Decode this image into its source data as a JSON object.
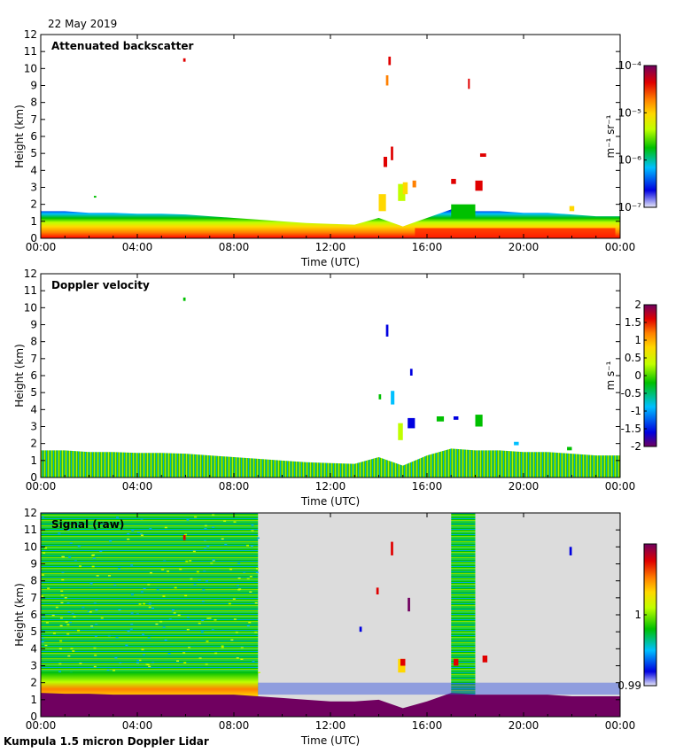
{
  "date": "22 May 2019",
  "footer": "Kumpula 1.5 micron Doppler Lidar",
  "chart_data": [
    {
      "type": "heatmap",
      "title": "Attenuated backscatter",
      "xlabel": "Time (UTC)",
      "ylabel": "Height (km)",
      "xticks": [
        "00:00",
        "04:00",
        "08:00",
        "12:00",
        "16:00",
        "20:00",
        "00:00"
      ],
      "yticks": [
        "0",
        "1",
        "2",
        "3",
        "4",
        "5",
        "6",
        "7",
        "8",
        "9",
        "10",
        "11",
        "12"
      ],
      "xlim": [
        0,
        24
      ],
      "ylim": [
        0,
        12
      ],
      "colorbar": {
        "label": "m⁻¹ sr⁻¹",
        "ticks": [
          "10⁻⁴",
          "10⁻⁵",
          "10⁻⁶",
          "10⁻⁷"
        ],
        "range": [
          1e-07,
          0.0001
        ],
        "colors": [
          "#e8e8f8",
          "#0000e0",
          "#00c0ff",
          "#00c000",
          "#c0ff00",
          "#ffd800",
          "#ff8000",
          "#e00000",
          "#700060"
        ]
      }
    },
    {
      "type": "heatmap",
      "title": "Doppler velocity",
      "xlabel": "Time (UTC)",
      "ylabel": "Height (km)",
      "xticks": [
        "00:00",
        "04:00",
        "08:00",
        "12:00",
        "16:00",
        "20:00",
        "00:00"
      ],
      "yticks": [
        "0",
        "1",
        "2",
        "3",
        "4",
        "5",
        "6",
        "7",
        "8",
        "9",
        "10",
        "11",
        "12"
      ],
      "xlim": [
        0,
        24
      ],
      "ylim": [
        0,
        12
      ],
      "colorbar": {
        "label": "m s⁻¹",
        "ticks": [
          "2",
          "1.5",
          "1",
          "0.5",
          "0",
          "-0.5",
          "-1",
          "-1.5",
          "-2"
        ],
        "range": [
          -2,
          2
        ],
        "colors": [
          "#700060",
          "#0000e0",
          "#00c0ff",
          "#00c000",
          "#c0ff00",
          "#ffd800",
          "#ff8000",
          "#e00000",
          "#700060"
        ]
      }
    },
    {
      "type": "heatmap",
      "title": "Signal (raw)",
      "xlabel": "Time (UTC)",
      "ylabel": "Height (km)",
      "xticks": [
        "00:00",
        "04:00",
        "08:00",
        "12:00",
        "16:00",
        "20:00",
        "00:00"
      ],
      "yticks": [
        "0",
        "1",
        "2",
        "3",
        "4",
        "5",
        "6",
        "7",
        "8",
        "9",
        "10",
        "11",
        "12"
      ],
      "xlim": [
        0,
        24
      ],
      "ylim": [
        0,
        12
      ],
      "colorbar": {
        "label": "",
        "ticks": [
          "1",
          "0.99"
        ],
        "range": [
          0.99,
          1.01
        ],
        "colors": [
          "#e8e8f8",
          "#0000e0",
          "#00c0ff",
          "#00c000",
          "#c0ff00",
          "#ffd800",
          "#ff8000",
          "#e00000",
          "#700060"
        ]
      }
    }
  ]
}
